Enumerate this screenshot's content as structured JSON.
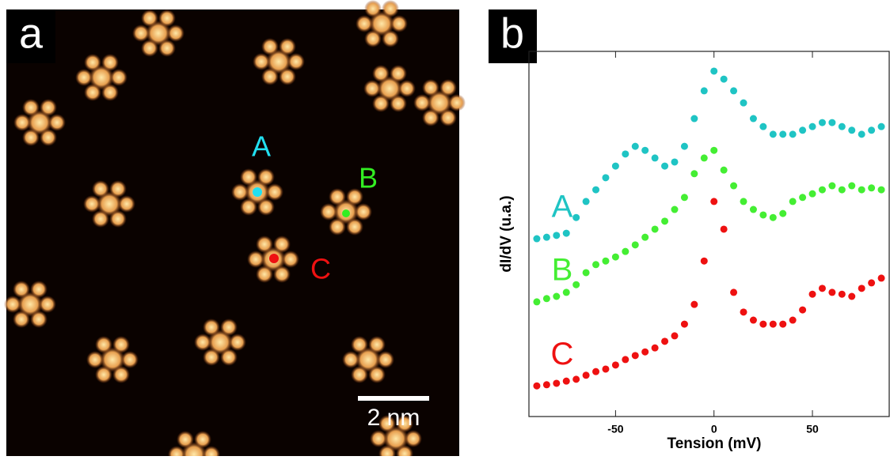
{
  "panel_a": {
    "label": "a",
    "points": [
      "A",
      "B",
      "C"
    ],
    "scale_bar": "2 nm"
  },
  "panel_b": {
    "label": "b"
  },
  "chart_data": {
    "type": "scatter",
    "x_label": "Tension (mV)",
    "y_label": "dI/dV (u.a.)",
    "xlim": [
      -94,
      89
    ],
    "xticks": [
      -50,
      0,
      50
    ],
    "ylim": [
      0,
      1
    ],
    "x": [
      -90,
      -85,
      -80,
      -75,
      -70,
      -65,
      -60,
      -55,
      -50,
      -45,
      -40,
      -35,
      -30,
      -25,
      -20,
      -15,
      -10,
      -5,
      0,
      5,
      10,
      15,
      20,
      25,
      30,
      35,
      40,
      45,
      50,
      55,
      60,
      65,
      70,
      75,
      80,
      85
    ],
    "series": [
      {
        "name": "A",
        "color": "#1fc4c4",
        "values": [
          0.487,
          0.491,
          0.496,
          0.502,
          0.545,
          0.589,
          0.621,
          0.654,
          0.686,
          0.719,
          0.74,
          0.729,
          0.708,
          0.686,
          0.697,
          0.74,
          0.816,
          0.892,
          0.946,
          0.924,
          0.892,
          0.859,
          0.816,
          0.794,
          0.773,
          0.773,
          0.773,
          0.784,
          0.794,
          0.805,
          0.805,
          0.794,
          0.784,
          0.773,
          0.784,
          0.794
        ]
      },
      {
        "name": "B",
        "color": "#44ee33",
        "values": [
          0.314,
          0.323,
          0.329,
          0.34,
          0.361,
          0.394,
          0.416,
          0.426,
          0.437,
          0.452,
          0.47,
          0.491,
          0.513,
          0.535,
          0.567,
          0.6,
          0.665,
          0.708,
          0.729,
          0.675,
          0.632,
          0.589,
          0.567,
          0.552,
          0.545,
          0.556,
          0.589,
          0.6,
          0.61,
          0.621,
          0.632,
          0.621,
          0.632,
          0.621,
          0.626,
          0.621
        ]
      },
      {
        "name": "C",
        "color": "#ee1111",
        "values": [
          0.084,
          0.087,
          0.091,
          0.097,
          0.102,
          0.113,
          0.123,
          0.13,
          0.141,
          0.156,
          0.167,
          0.177,
          0.188,
          0.206,
          0.221,
          0.253,
          0.307,
          0.426,
          0.589,
          0.513,
          0.34,
          0.286,
          0.264,
          0.253,
          0.253,
          0.253,
          0.264,
          0.292,
          0.335,
          0.351,
          0.34,
          0.335,
          0.329,
          0.351,
          0.366,
          0.379
        ]
      }
    ]
  }
}
